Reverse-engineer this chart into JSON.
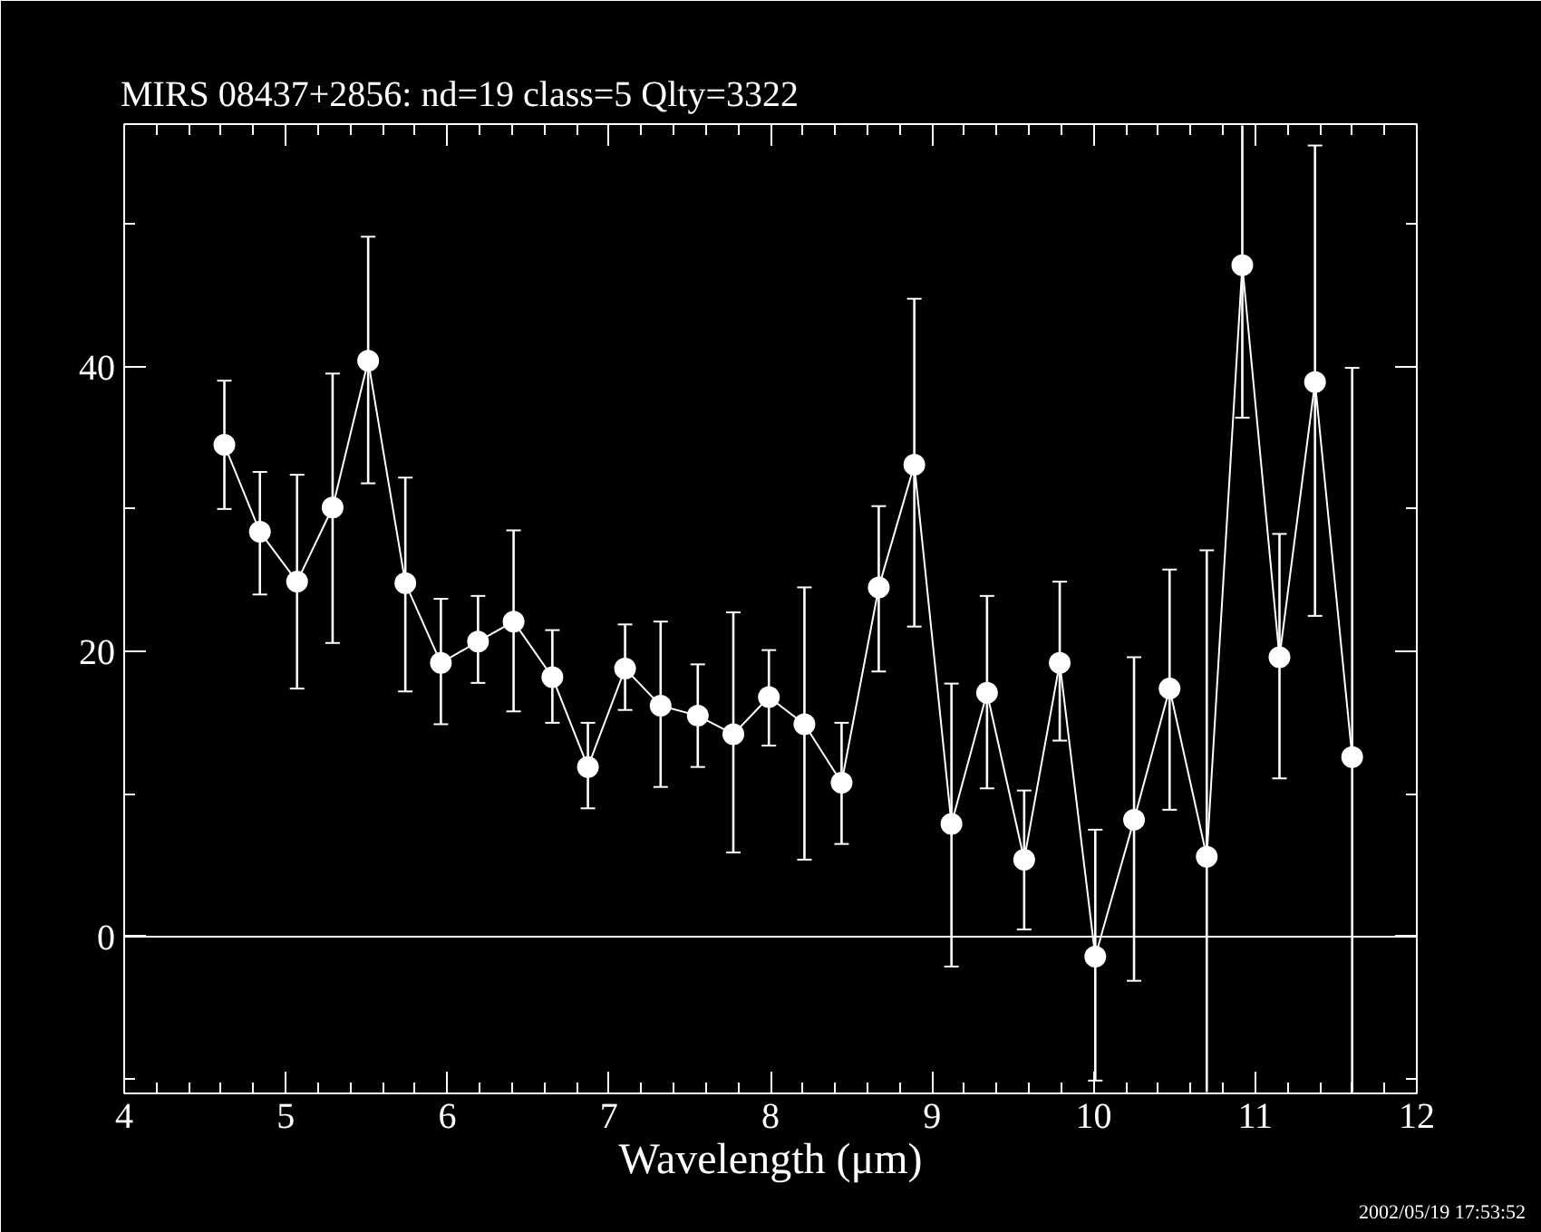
{
  "chart_data": {
    "type": "line",
    "title": "MIRS 08437+2856:    nd=19   class=5   Qlty=3322",
    "xlabel": "Wavelength (μm)",
    "x": [
      4.62,
      4.84,
      5.07,
      5.29,
      5.51,
      5.74,
      5.96,
      6.19,
      6.41,
      6.65,
      6.87,
      7.1,
      7.32,
      7.55,
      7.77,
      7.99,
      8.21,
      8.44,
      8.67,
      8.89,
      9.12,
      9.34,
      9.57,
      9.79,
      10.01,
      10.25,
      10.47,
      10.7,
      10.92,
      11.15,
      11.37,
      11.6
    ],
    "series": [
      {
        "color": "#ffffff",
        "values": [
          34.5,
          28.4,
          24.9,
          30.1,
          40.4,
          24.8,
          19.2,
          20.7,
          22.1,
          18.2,
          11.9,
          18.8,
          16.2,
          15.5,
          14.2,
          16.8,
          14.9,
          10.8,
          24.5,
          33.1,
          7.9,
          17.1,
          5.4,
          19.2,
          -1.4,
          8.2,
          17.4,
          5.6,
          47.1,
          19.6,
          38.9,
          12.6
        ],
        "errors": [
          [
            30.0,
            39.0
          ],
          [
            24.0,
            32.6
          ],
          [
            17.4,
            32.4
          ],
          [
            20.6,
            39.5
          ],
          [
            31.8,
            49.1
          ],
          [
            17.2,
            32.2
          ],
          [
            14.9,
            23.7
          ],
          [
            17.8,
            23.9
          ],
          [
            15.8,
            28.5
          ],
          [
            15.0,
            21.5
          ],
          [
            9.0,
            15.0
          ],
          [
            15.9,
            21.9
          ],
          [
            10.5,
            22.1
          ],
          [
            11.9,
            19.1
          ],
          [
            5.9,
            22.75
          ],
          [
            13.4,
            20.1
          ],
          [
            5.4,
            24.5
          ],
          [
            6.5,
            15.0
          ],
          [
            18.6,
            30.2
          ],
          [
            21.75,
            44.75
          ],
          [
            -2.1,
            17.75
          ],
          [
            10.4,
            23.9
          ],
          [
            0.5,
            10.25
          ],
          [
            13.75,
            24.9
          ],
          [
            -10.1,
            7.5
          ],
          [
            -3.1,
            19.6
          ],
          [
            8.9,
            25.75
          ],
          [
            -10.9,
            27.1
          ],
          [
            36.4,
            56.9
          ],
          [
            11.1,
            28.25
          ],
          [
            22.5,
            55.5
          ],
          [
            -10.9,
            39.9
          ]
        ]
      }
    ],
    "marker": "circle",
    "line_style": "solid",
    "xlim": [
      4,
      12
    ],
    "ylim": [
      -11,
      57
    ],
    "xticks": [
      4,
      {
        "value": 4.2,
        "label": null
      },
      {
        "value": 4.4,
        "label": null
      },
      {
        "value": 4.6,
        "label": null
      },
      {
        "value": 4.8,
        "label": null
      },
      5,
      {
        "value": 5.2,
        "label": null
      },
      {
        "value": 5.4,
        "label": null
      },
      {
        "value": 5.6,
        "label": null
      },
      {
        "value": 5.8,
        "label": null
      },
      6,
      {
        "value": 6.2,
        "label": null
      },
      {
        "value": 6.4,
        "label": null
      },
      {
        "value": 6.6,
        "label": null
      },
      {
        "value": 6.8,
        "label": null
      },
      7,
      {
        "value": 7.2,
        "label": null
      },
      {
        "value": 7.4,
        "label": null
      },
      {
        "value": 7.6,
        "label": null
      },
      {
        "value": 7.8,
        "label": null
      },
      8,
      {
        "value": 8.2,
        "label": null
      },
      {
        "value": 8.4,
        "label": null
      },
      {
        "value": 8.6,
        "label": null
      },
      {
        "value": 8.8,
        "label": null
      },
      9,
      {
        "value": 9.2,
        "label": null
      },
      {
        "value": 9.4,
        "label": null
      },
      {
        "value": 9.6,
        "label": null
      },
      {
        "value": 9.8,
        "label": null
      },
      10,
      {
        "value": 10.2,
        "label": null
      },
      {
        "value": 10.4,
        "label": null
      },
      {
        "value": 10.6,
        "label": null
      },
      {
        "value": 10.8,
        "label": null
      },
      11,
      {
        "value": 11.2,
        "label": null
      },
      {
        "value": 11.4,
        "label": null
      },
      {
        "value": 11.6,
        "label": null
      },
      {
        "value": 11.8,
        "label": null
      },
      12
    ],
    "yticks": [
      {
        "value": -10,
        "label": null
      },
      0,
      {
        "value": 10,
        "label": null
      },
      20,
      {
        "value": 30,
        "label": null
      },
      40,
      {
        "value": 50,
        "label": null
      }
    ],
    "ref_lines": [
      {
        "axis": "y",
        "value": 0,
        "label": null,
        "color": "#ffffff"
      }
    ],
    "annotations": [
      "2002/05/19 17:53:52"
    ]
  }
}
